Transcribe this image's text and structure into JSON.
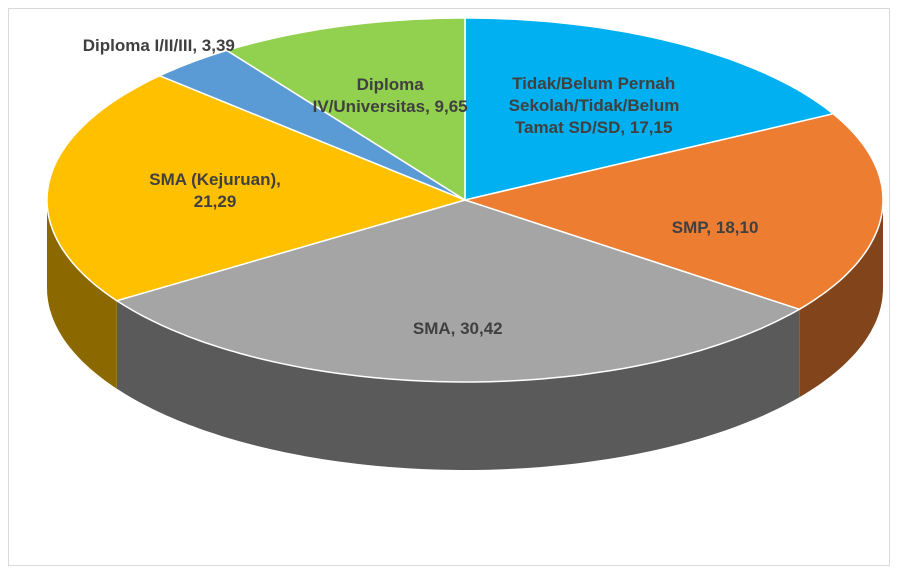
{
  "chart_data": {
    "type": "pie",
    "categories": [
      "Tidak/Belum Pernah Sekolah/Tidak/Belum Tamat SD/SD,",
      "SMP,",
      "SMA,",
      "SMA (Kejuruan),",
      "Diploma I/II/III,",
      "Diploma IV/Universitas,"
    ],
    "values": [
      17.15,
      18.1,
      30.42,
      21.29,
      3.39,
      9.65
    ],
    "value_labels": [
      "17,15",
      "18,10",
      "30,42",
      "21,29",
      "3,39",
      "9,65"
    ],
    "colors": [
      "#00b0f0",
      "#ed7d31",
      "#a5a5a5",
      "#ffc000",
      "#5b9bd5",
      "#92d050"
    ]
  }
}
